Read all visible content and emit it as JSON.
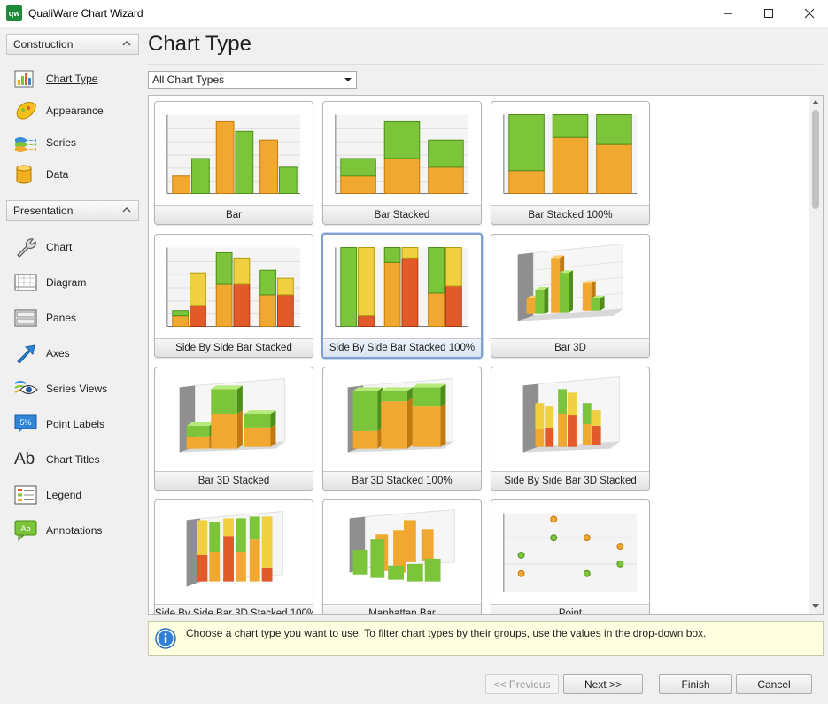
{
  "window": {
    "title": "QualiWare Chart Wizard",
    "logo_text": "qw"
  },
  "nav": {
    "groups": [
      {
        "label": "Construction",
        "items": [
          {
            "label": "Chart Type",
            "icon": "bar-chart-icon",
            "active": true
          },
          {
            "label": "Appearance",
            "icon": "palette-icon"
          },
          {
            "label": "Series",
            "icon": "series-icon"
          },
          {
            "label": "Data",
            "icon": "database-icon"
          }
        ]
      },
      {
        "label": "Presentation",
        "items": [
          {
            "label": "Chart",
            "icon": "wrench-icon"
          },
          {
            "label": "Diagram",
            "icon": "diagram-icon"
          },
          {
            "label": "Panes",
            "icon": "panes-icon"
          },
          {
            "label": "Axes",
            "icon": "axes-arrow-icon"
          },
          {
            "label": "Series Views",
            "icon": "eye-icon"
          },
          {
            "label": "Point Labels",
            "icon": "point-labels-icon",
            "badge": "5%"
          },
          {
            "label": "Chart Titles",
            "icon": "chart-titles-icon",
            "glyph": "Ab"
          },
          {
            "label": "Legend",
            "icon": "legend-icon"
          },
          {
            "label": "Annotations",
            "icon": "annotation-icon",
            "badge": "Ab"
          }
        ]
      }
    ]
  },
  "main": {
    "title": "Chart Type",
    "filter": {
      "selected": "All Chart Types"
    },
    "chart_types": [
      {
        "label": "Bar"
      },
      {
        "label": "Bar Stacked"
      },
      {
        "label": "Bar Stacked 100%"
      },
      {
        "label": "Side By Side Bar Stacked"
      },
      {
        "label": "Side By Side Bar Stacked 100%",
        "selected": true
      },
      {
        "label": "Bar 3D"
      },
      {
        "label": "Bar 3D Stacked"
      },
      {
        "label": "Bar 3D Stacked 100%"
      },
      {
        "label": "Side By Side Bar 3D Stacked"
      },
      {
        "label": "Side By Side Bar 3D Stacked 100%"
      },
      {
        "label": "Manhattan Bar"
      },
      {
        "label": "Point"
      }
    ],
    "hint": "Choose a chart type you want to use. To filter chart types by their groups, use the values in the drop-down box."
  },
  "buttons": {
    "previous": "<< Previous",
    "next": "Next >>",
    "finish": "Finish",
    "cancel": "Cancel"
  },
  "colors": {
    "orange": "#f0a830",
    "green": "#7cc43a",
    "red": "#e25a2a",
    "yellow": "#f0d040",
    "selection": "#7fa1cf"
  }
}
